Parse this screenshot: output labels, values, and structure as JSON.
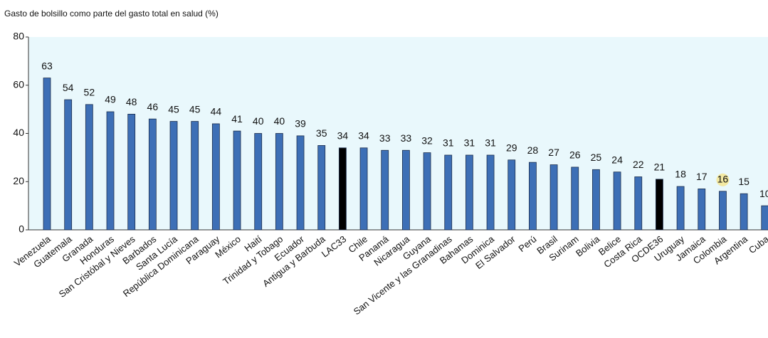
{
  "chart_data": {
    "type": "bar",
    "title": "Gasto de bolsillo como parte del gasto total en salud (%)",
    "categories": [
      "Venezuela",
      "Guatemala",
      "Granada",
      "Honduras",
      "San Cristóbal y Nieves",
      "Barbados",
      "Santa Lucía",
      "República Dominicana",
      "Paraguay",
      "México",
      "Haití",
      "Trinidad y Tobago",
      "Ecuador",
      "Antigua y Barbuda",
      "LAC33",
      "Chile",
      "Panamá",
      "Nicaragua",
      "Guyana",
      "San Vicente y las Granadinas",
      "Bahamas",
      "Dominica",
      "El Salvador",
      "Perú",
      "Brasil",
      "Surinam",
      "Bolivia",
      "Belice",
      "Costa Rica",
      "OCDE36",
      "Uruguay",
      "Jamaica",
      "Colombia",
      "Argentina",
      "Cuba"
    ],
    "values": [
      63,
      54,
      52,
      49,
      48,
      46,
      45,
      45,
      44,
      41,
      40,
      40,
      39,
      35,
      34,
      34,
      33,
      33,
      32,
      31,
      31,
      31,
      29,
      28,
      27,
      26,
      25,
      24,
      22,
      21,
      18,
      17,
      16,
      15,
      10
    ],
    "colors": [
      "#3d6fb6",
      "#3d6fb6",
      "#3d6fb6",
      "#3d6fb6",
      "#3d6fb6",
      "#3d6fb6",
      "#3d6fb6",
      "#3d6fb6",
      "#3d6fb6",
      "#3d6fb6",
      "#3d6fb6",
      "#3d6fb6",
      "#3d6fb6",
      "#3d6fb6",
      "#000000",
      "#3d6fb6",
      "#3d6fb6",
      "#3d6fb6",
      "#3d6fb6",
      "#3d6fb6",
      "#3d6fb6",
      "#3d6fb6",
      "#3d6fb6",
      "#3d6fb6",
      "#3d6fb6",
      "#3d6fb6",
      "#3d6fb6",
      "#3d6fb6",
      "#3d6fb6",
      "#000000",
      "#3d6fb6",
      "#3d6fb6",
      "#3d6fb6",
      "#3d6fb6",
      "#3d6fb6"
    ],
    "highlight": {
      "index": 32,
      "color": "#f3e9a2"
    },
    "background": "#e9f8fc",
    "ylim": [
      0,
      80
    ],
    "yticks": [
      0,
      20,
      40,
      60,
      80
    ],
    "grid": false
  }
}
